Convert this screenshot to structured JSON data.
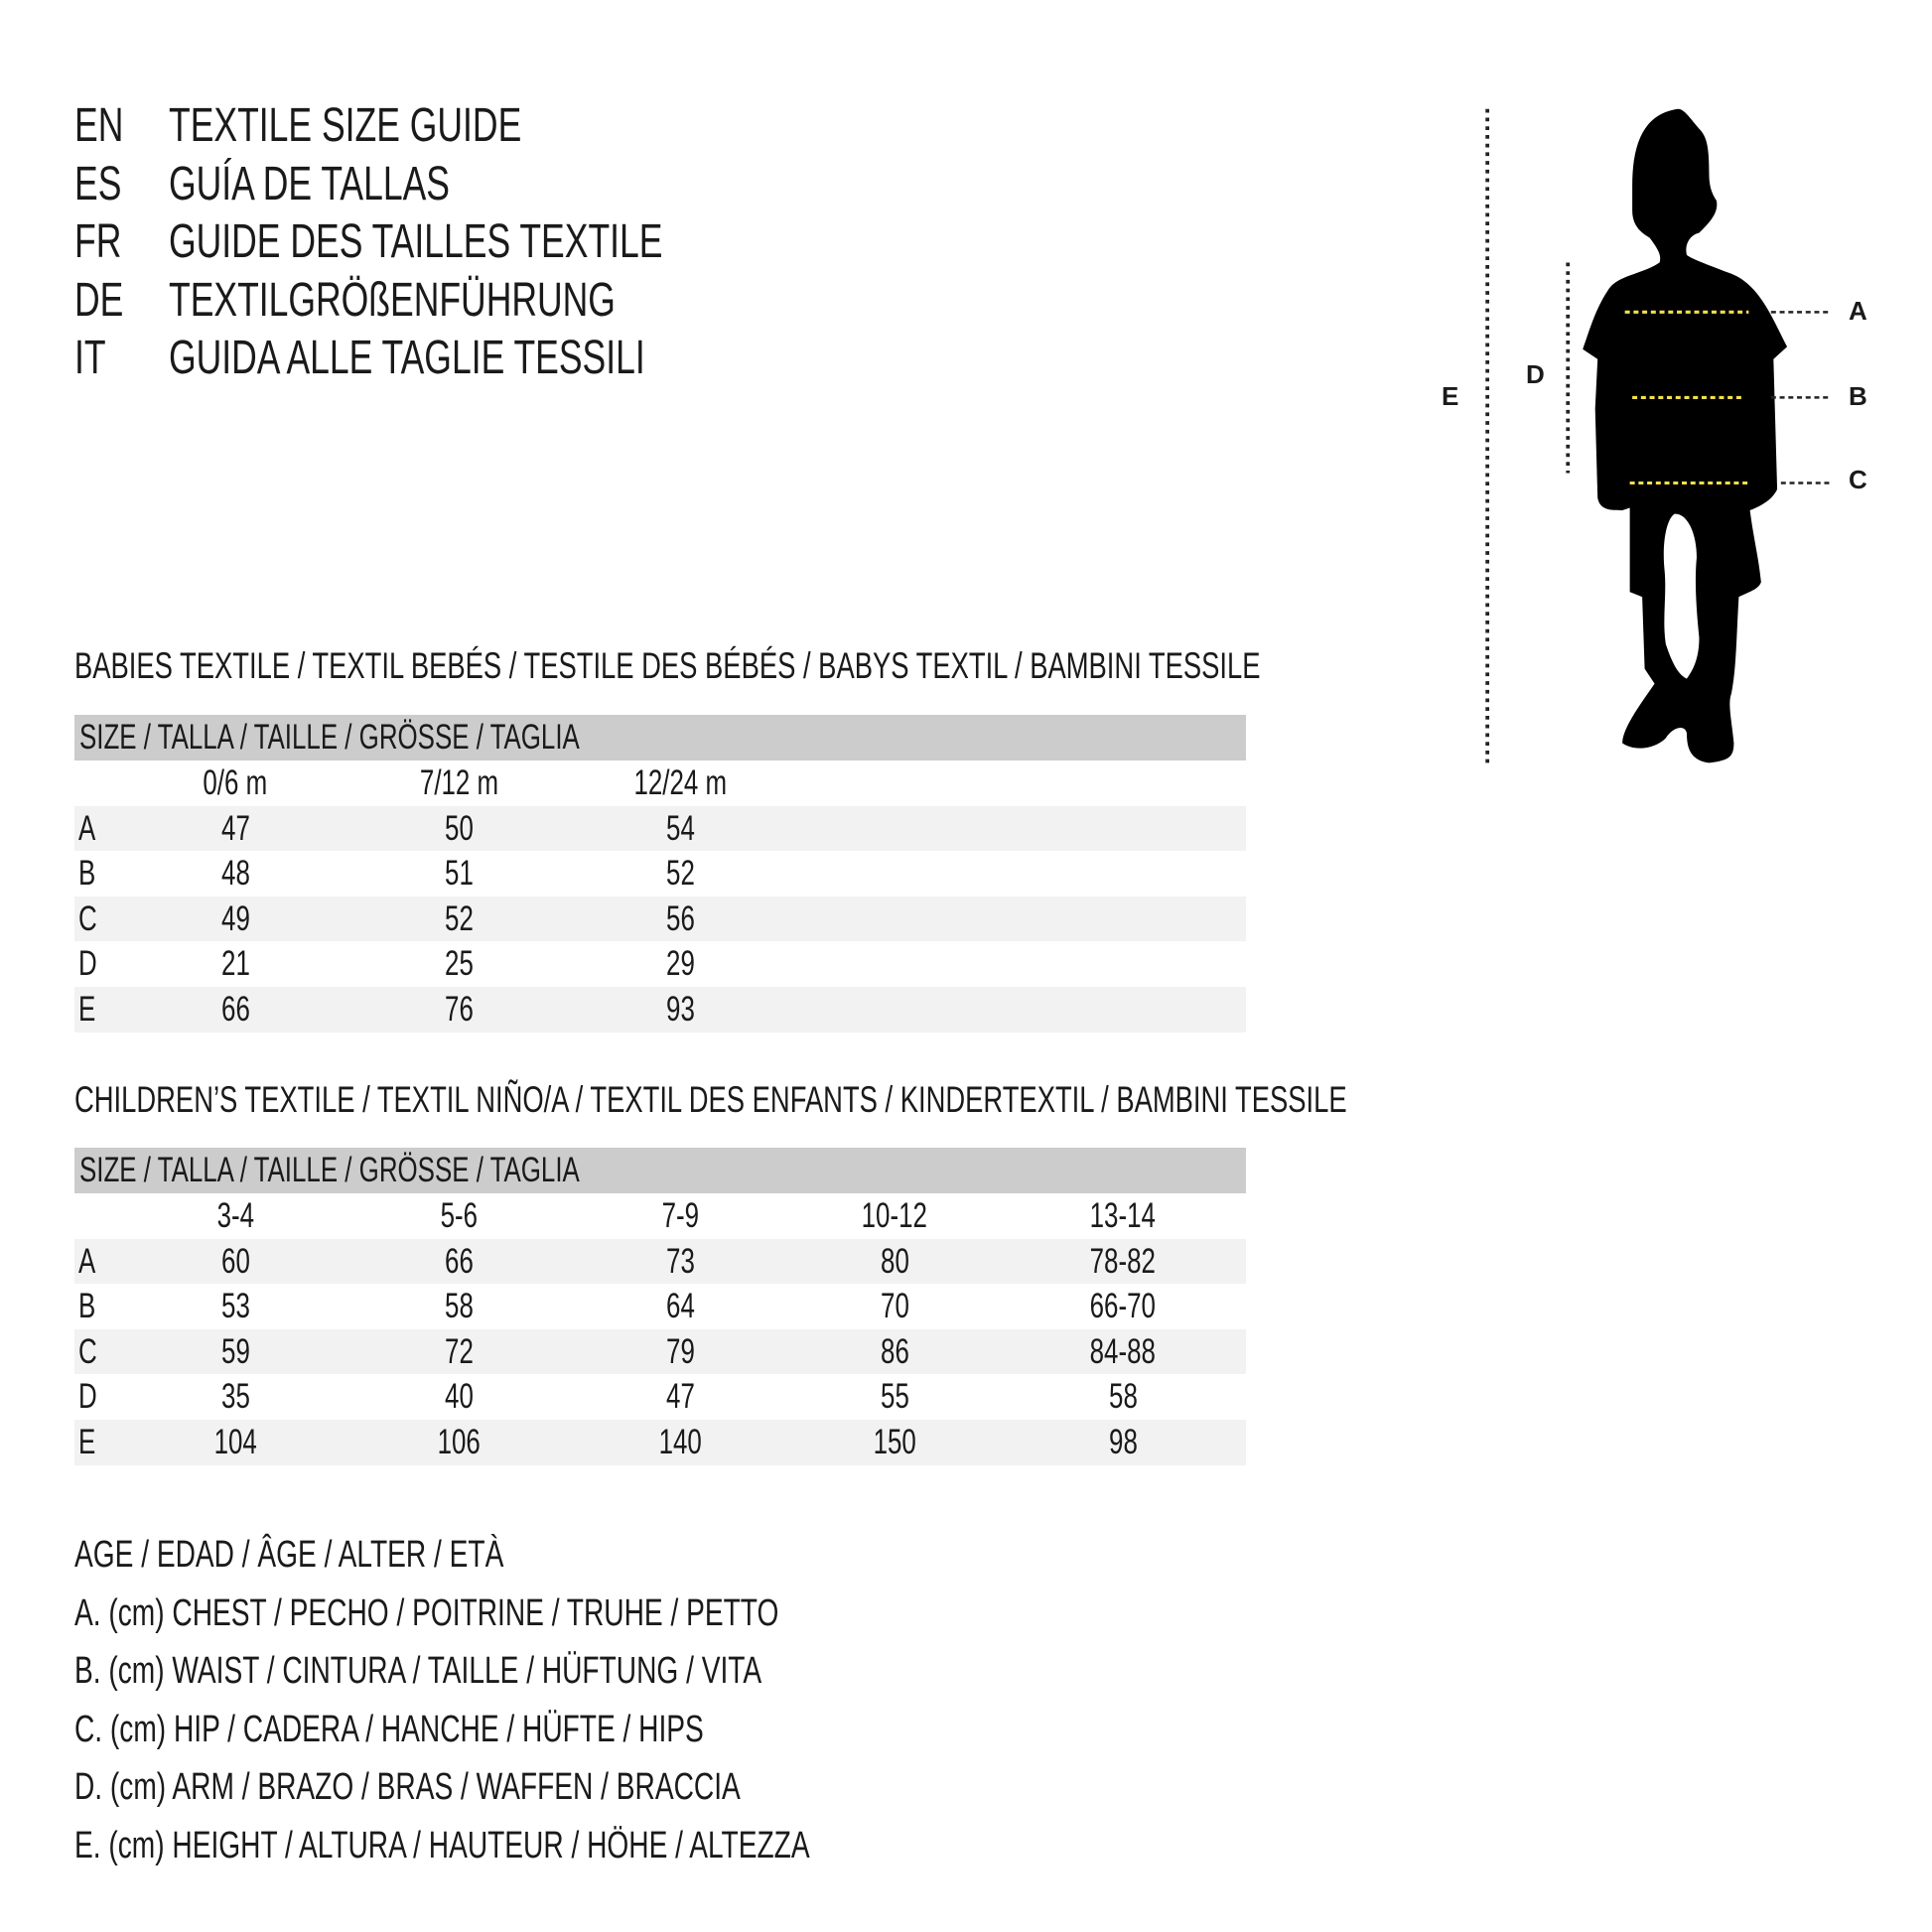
{
  "titles": [
    {
      "lang": "EN",
      "text": "TEXTILE SIZE GUIDE"
    },
    {
      "lang": "ES",
      "text": "GUÍA DE TALLAS"
    },
    {
      "lang": "FR",
      "text": "GUIDE DES TAILLES TEXTILE"
    },
    {
      "lang": "DE",
      "text": "TEXTILGRÖßENFÜHRUNG"
    },
    {
      "lang": "IT",
      "text": "GUIDA ALLE TAGLIE TESSILI"
    }
  ],
  "babies": {
    "heading": "BABIES TEXTILE / TEXTIL BEBÉS / TESTILE DES BÉBÉS / BABYS TEXTIL / BAMBINI TESSILE",
    "size_label": "SIZE / TALLA / TAILLE / GRÖSSE / TAGLIA",
    "columns": [
      "0/6 m",
      "7/12 m",
      "12/24 m"
    ],
    "rows": [
      {
        "label": "A",
        "values": [
          "47",
          "50",
          "54"
        ]
      },
      {
        "label": "B",
        "values": [
          "48",
          "51",
          "52"
        ]
      },
      {
        "label": "C",
        "values": [
          "49",
          "52",
          "56"
        ]
      },
      {
        "label": "D",
        "values": [
          "21",
          "25",
          "29"
        ]
      },
      {
        "label": "E",
        "values": [
          "66",
          "76",
          "93"
        ]
      }
    ]
  },
  "children": {
    "heading": "CHILDREN’S TEXTILE / TEXTIL NIÑO/A / TEXTIL DES ENFANTS / KINDERTEXTIL / BAMBINI TESSILE",
    "size_label": "SIZE / TALLA / TAILLE / GRÖSSE / TAGLIA",
    "columns": [
      "3-4",
      "5-6",
      "7-9",
      "10-12",
      "13-14"
    ],
    "rows": [
      {
        "label": "A",
        "values": [
          "60",
          "66",
          "73",
          "80",
          "78-82"
        ]
      },
      {
        "label": "B",
        "values": [
          "53",
          "58",
          "64",
          "70",
          "66-70"
        ]
      },
      {
        "label": "C",
        "values": [
          "59",
          "72",
          "79",
          "86",
          "84-88"
        ]
      },
      {
        "label": "D",
        "values": [
          "35",
          "40",
          "47",
          "55",
          "58"
        ]
      },
      {
        "label": "E",
        "values": [
          "104",
          "106",
          "140",
          "150",
          "98"
        ]
      }
    ]
  },
  "legend": [
    "AGE / EDAD / ÂGE / ALTER / ETÀ",
    "A. (cm) CHEST / PECHO / POITRINE / TRUHE / PETTO",
    "B. (cm) WAIST / CINTURA / TAILLE / HÜFTUNG / VITA",
    "C. (cm) HIP / CADERA / HANCHE / HÜFTE / HIPS",
    "D. (cm) ARM / BRAZO / BRAS / WAFFEN / BRACCIA",
    "E. (cm) HEIGHT / ALTURA / HAUTEUR / HÖHE / ALTEZZA"
  ],
  "figure": {
    "labels": {
      "a": "A",
      "b": "B",
      "c": "C",
      "d": "D",
      "e": "E"
    },
    "measure_line_color": "#f2e14a"
  }
}
